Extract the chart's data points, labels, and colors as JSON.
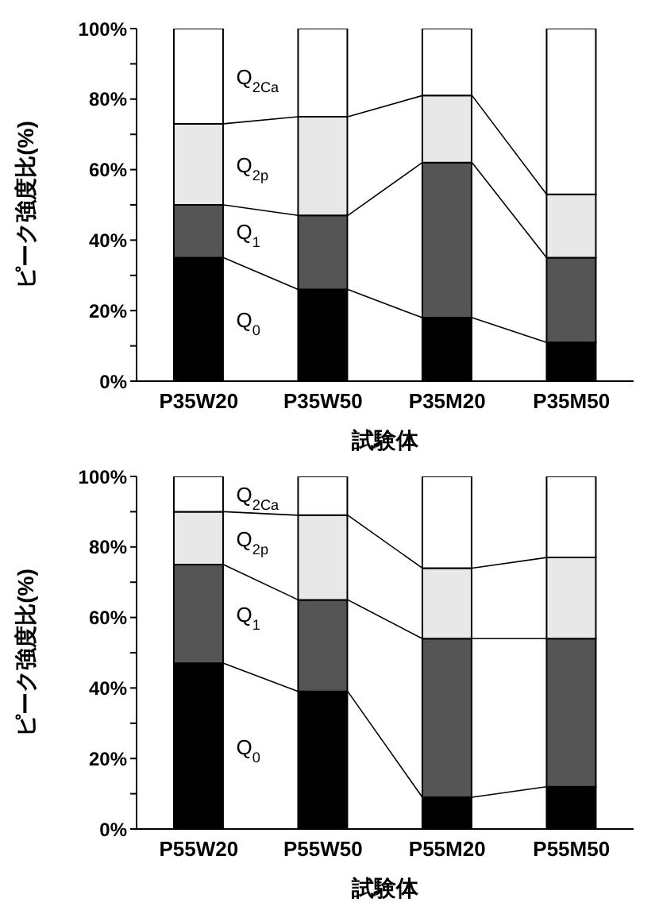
{
  "chart_data": [
    {
      "type": "bar",
      "stacked": true,
      "legend": "left",
      "xlabel": "試験体",
      "ylabel": "ピーク強度比(%)",
      "categories": [
        "P35W20",
        "P35W50",
        "P35M20",
        "P35M50"
      ],
      "series": [
        {
          "name": "Q$_{0}$",
          "color": "#000000",
          "values": [
            35,
            26,
            18,
            11
          ]
        },
        {
          "name": "Q$_{1}$",
          "color": "#555555",
          "values": [
            15,
            21,
            44,
            24
          ]
        },
        {
          "name": "Q$_{2p}$",
          "color": "#e8e8e8",
          "values": [
            23,
            28,
            19,
            18
          ]
        },
        {
          "name": "Q$_{2Ca}$",
          "color": "#ffffff",
          "values": [
            27,
            25,
            19,
            47
          ]
        }
      ],
      "ylim": [
        0,
        100
      ],
      "yticks": [
        {
          "value": 0,
          "label": "0%"
        },
        {
          "value": 10,
          "label": null
        },
        {
          "value": 20,
          "label": "20%"
        },
        {
          "value": 30,
          "label": null
        },
        {
          "value": 40,
          "label": "40%"
        },
        {
          "value": 50,
          "label": null
        },
        {
          "value": 60,
          "label": "60%"
        },
        {
          "value": 70,
          "label": null
        },
        {
          "value": 80,
          "label": "80%"
        },
        {
          "value": 90,
          "label": null
        },
        {
          "value": 100,
          "label": "100%"
        }
      ]
    },
    {
      "type": "bar",
      "stacked": true,
      "legend": "top left",
      "xlabel": "試験体",
      "ylabel": "ピーク強度比(%)",
      "categories": [
        "P55W20",
        "P55W50",
        "P55M20",
        "P55M50"
      ],
      "series": [
        {
          "name": "Q$_{0}$",
          "color": "#000000",
          "values": [
            47,
            39,
            9,
            12
          ]
        },
        {
          "name": "Q$_{1}$",
          "color": "#555555",
          "values": [
            28,
            26,
            45,
            42
          ]
        },
        {
          "name": "Q$_{2p}$",
          "color": "#e8e8e8",
          "values": [
            15,
            24,
            20,
            23
          ]
        },
        {
          "name": "Q$_{2Ca}$",
          "color": "#ffffff",
          "values": [
            10,
            11,
            26,
            23
          ]
        }
      ],
      "ylim": [
        0,
        100
      ],
      "yticks": [
        {
          "value": 0,
          "label": "0%"
        },
        {
          "value": 10,
          "label": null
        },
        {
          "value": 20,
          "label": "20%"
        },
        {
          "value": 30,
          "label": null
        },
        {
          "value": 40,
          "label": "40%"
        },
        {
          "value": 50,
          "label": null
        },
        {
          "value": 60,
          "label": "60%"
        },
        {
          "value": 70,
          "label": null
        },
        {
          "value": 80,
          "label": "80%"
        },
        {
          "value": 90,
          "label": null
        },
        {
          "value": 100,
          "label": "100%"
        }
      ]
    }
  ]
}
